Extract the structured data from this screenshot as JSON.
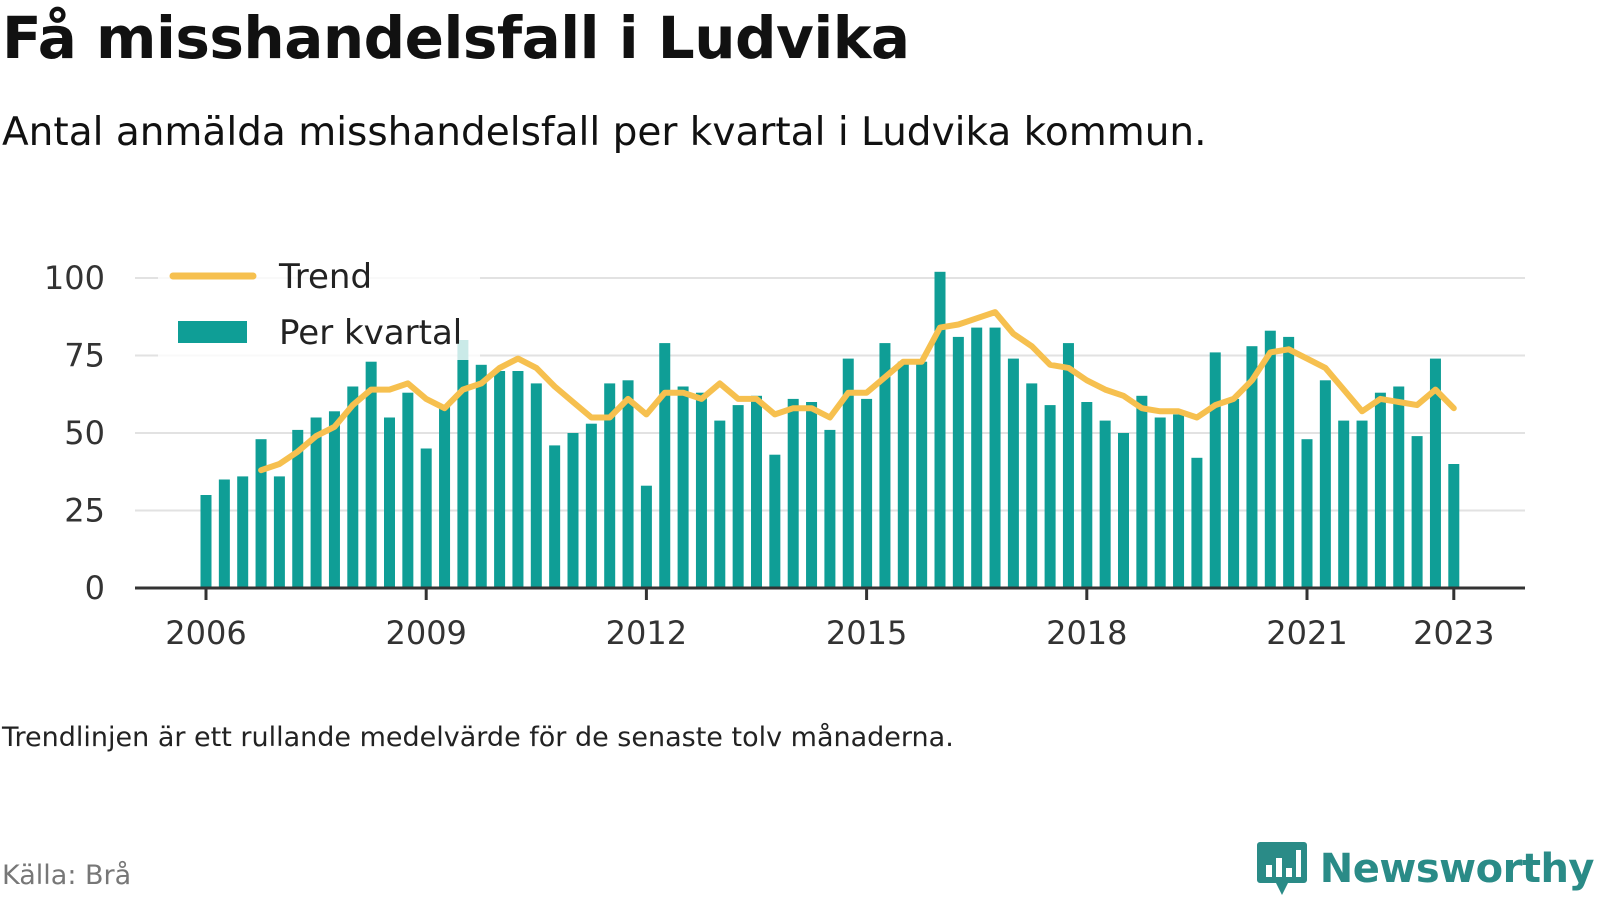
{
  "title": "Få misshandelsfall i Ludvika",
  "subtitle": "Antal anmälda misshandelsfall per kvartal i Ludvika kommun.",
  "note": "Trendlinjen är ett rullande medelvärde för de senaste tolv månaderna.",
  "source": "Källa: Brå",
  "brand": {
    "name": "Newsworthy",
    "icon": "newsworthy-logo-icon"
  },
  "colors": {
    "bars": "#0f9e96",
    "trend": "#f6c04f",
    "grid": "#e2e2e2",
    "axis": "#333333"
  },
  "chart_data": {
    "type": "bar",
    "x_start_year": 2006,
    "periods_per_year": 4,
    "legend": [
      {
        "label": "Trend",
        "kind": "line"
      },
      {
        "label": "Per kvartal",
        "kind": "bar"
      }
    ],
    "legend_position": "top-left",
    "grid": true,
    "ylim": [
      0,
      100
    ],
    "yticks": [
      0,
      25,
      50,
      75,
      100
    ],
    "xticks": [
      {
        "label": "2006",
        "value": 2006.0
      },
      {
        "label": "2009",
        "value": 2009.0
      },
      {
        "label": "2012",
        "value": 2012.0
      },
      {
        "label": "2015",
        "value": 2015.0
      },
      {
        "label": "2018",
        "value": 2018.0
      },
      {
        "label": "2021",
        "value": 2021.0
      },
      {
        "label": "2023",
        "value": 2023.0
      }
    ],
    "series": [
      {
        "name": "Per kvartal",
        "type": "bar",
        "values": [
          30,
          35,
          36,
          48,
          36,
          51,
          55,
          57,
          65,
          73,
          55,
          63,
          45,
          59,
          80,
          72,
          70,
          70,
          66,
          46,
          50,
          53,
          66,
          67,
          33,
          79,
          65,
          63,
          54,
          59,
          62,
          43,
          61,
          60,
          51,
          74,
          61,
          79,
          73,
          73,
          102,
          81,
          84,
          84,
          74,
          66,
          59,
          79,
          60,
          54,
          50,
          62,
          55,
          56,
          42,
          76,
          61,
          78,
          83,
          81,
          48,
          67,
          54,
          54,
          63,
          65,
          49,
          74,
          40
        ]
      },
      {
        "name": "Trend",
        "type": "line",
        "start_index": 3,
        "values": [
          38,
          40,
          44,
          49,
          52,
          59,
          64,
          64,
          66,
          61,
          58,
          64,
          66,
          71,
          74,
          71,
          65,
          60,
          55,
          55,
          61,
          56,
          63,
          63,
          61,
          66,
          61,
          61,
          56,
          58,
          58,
          55,
          63,
          63,
          68,
          73,
          73,
          84,
          85,
          87,
          89,
          82,
          78,
          72,
          71,
          67,
          64,
          62,
          58,
          57,
          57,
          55,
          59,
          61,
          67,
          76,
          77,
          74,
          71,
          64,
          57,
          61,
          60,
          59,
          64,
          58
        ]
      }
    ]
  }
}
